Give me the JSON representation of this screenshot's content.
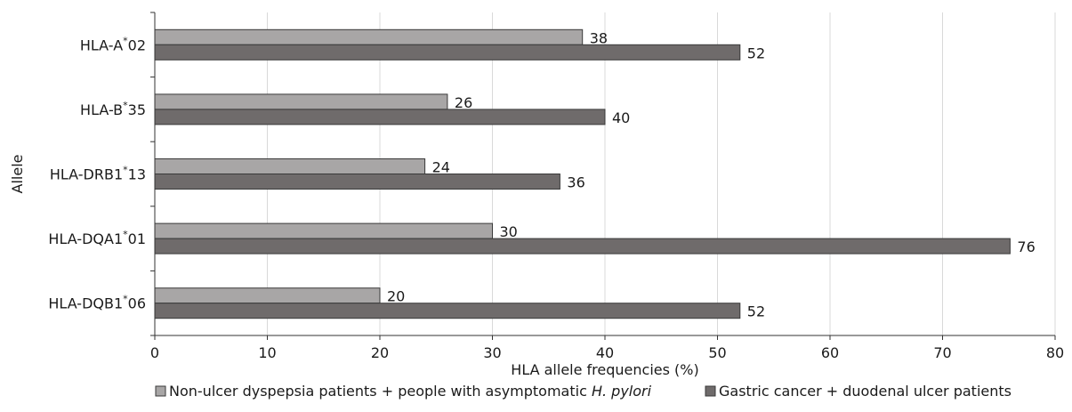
{
  "chart_data": {
    "type": "bar",
    "orientation": "horizontal",
    "categories": [
      {
        "name": "HLA-A",
        "sup": "*",
        "suffix": "02"
      },
      {
        "name": "HLA-B",
        "sup": "*",
        "suffix": "35"
      },
      {
        "name": "HLA-DRB1",
        "sup": "*",
        "suffix": "13"
      },
      {
        "name": "HLA-DQA1",
        "sup": "*",
        "suffix": "01"
      },
      {
        "name": "HLA-DQB1",
        "sup": "*",
        "suffix": "06"
      }
    ],
    "series": [
      {
        "legend_text": "Non-ulcer dyspepsia patients + people with asymptomatic ",
        "legend_italic": "H. pylori",
        "color": "#a8a6a6",
        "values": [
          38,
          26,
          24,
          30,
          20
        ]
      },
      {
        "legend_text": "Gastric cancer + duodenal ulcer patients",
        "legend_italic": "",
        "color": "#6f6b6b",
        "values": [
          52,
          40,
          36,
          76,
          52
        ]
      }
    ],
    "xlabel": "HLA allele frequencies (%)",
    "ylabel": "Allele",
    "xlim": [
      0,
      80
    ],
    "xticks": [
      0,
      10,
      20,
      30,
      40,
      50,
      60,
      70,
      80
    ],
    "grid": "vertical",
    "legend_position": "bottom"
  }
}
